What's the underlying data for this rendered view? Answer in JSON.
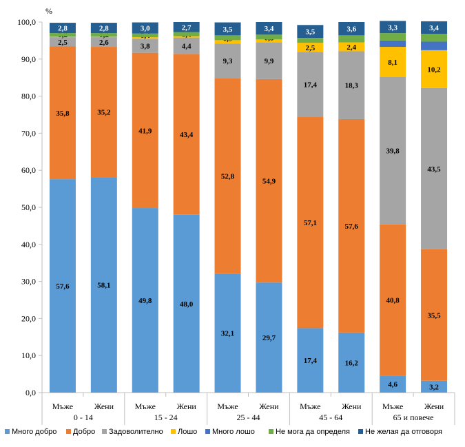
{
  "chart_data": {
    "type": "bar",
    "stacked": true,
    "y_unit_label": "%",
    "ylim": [
      0,
      100
    ],
    "yticks": [
      "0,0",
      "10,0",
      "20,0",
      "30,0",
      "40,0",
      "50,0",
      "60,0",
      "70,0",
      "80,0",
      "90,0",
      "100,0"
    ],
    "grid": false,
    "legend_position": "bottom",
    "groups": [
      "0 - 14",
      "15 - 24",
      "25 - 44",
      "45 - 64",
      "65 и повече"
    ],
    "categories": [
      "Мъже",
      "Жени",
      "Мъже",
      "Жени",
      "Мъже",
      "Жени",
      "Мъже",
      "Жени",
      "Мъже",
      "Жени"
    ],
    "series": [
      {
        "name": "Много добро",
        "color": "#5b9bd5",
        "values": [
          57.6,
          58.1,
          49.8,
          48.0,
          32.1,
          29.7,
          17.4,
          16.2,
          4.6,
          3.2
        ],
        "labels": [
          "57,6",
          "58,1",
          "49,8",
          "48,0",
          "32,1",
          "29,7",
          "17,4",
          "16,2",
          "4,6",
          "3,2"
        ]
      },
      {
        "name": "Добро",
        "color": "#ed7d31",
        "values": [
          35.8,
          35.2,
          41.9,
          43.4,
          52.8,
          54.9,
          57.1,
          57.6,
          40.8,
          35.5
        ],
        "labels": [
          "35,8",
          "35,2",
          "41,9",
          "43,4",
          "52,8",
          "54,9",
          "57,1",
          "57,6",
          "40,8",
          "35,5"
        ]
      },
      {
        "name": "Задоволително",
        "color": "#a5a5a5",
        "values": [
          2.5,
          2.6,
          3.8,
          4.4,
          9.3,
          9.9,
          17.4,
          18.3,
          39.8,
          43.5
        ],
        "labels": [
          "2,5",
          "2,6",
          "3,8",
          "4,4",
          "9,3",
          "9,9",
          "17,4",
          "18,3",
          "39,8",
          "43,5"
        ]
      },
      {
        "name": "Лошо",
        "color": "#ffc000",
        "values": [
          0.2,
          0.2,
          0.4,
          0.4,
          0.9,
          0.8,
          2.5,
          2.4,
          8.1,
          10.2
        ],
        "labels": [
          "0,2",
          "0,2",
          "0,4",
          "0,4",
          "0,9",
          "0,8",
          "2,5",
          "2,4",
          "8,1",
          "10,2"
        ]
      },
      {
        "name": "Много лошо",
        "color": "#4472c4",
        "values": [
          0.0,
          0.0,
          0.0,
          0.0,
          0.0,
          0.0,
          0.0,
          0.0,
          1.7,
          2.3
        ],
        "labels": [
          "",
          "",
          "",
          "",
          "",
          "",
          "",
          "",
          "",
          ""
        ]
      },
      {
        "name": "Не мога да определя",
        "color": "#70ad47",
        "values": [
          0.9,
          0.9,
          1.0,
          1.1,
          1.3,
          1.3,
          1.3,
          1.9,
          2.0,
          2.1
        ],
        "labels": [
          "",
          "",
          "",
          "",
          "",
          "",
          "",
          "",
          "",
          ""
        ]
      },
      {
        "name": "Не желая да отговоря",
        "color": "#255e91",
        "values": [
          2.8,
          2.8,
          3.0,
          2.7,
          3.5,
          3.4,
          3.5,
          3.6,
          3.3,
          3.4
        ],
        "labels": [
          "2,8",
          "2,8",
          "3,0",
          "2,7",
          "3,5",
          "3,4",
          "3,5",
          "3,6",
          "3,3",
          "3,4"
        ]
      }
    ]
  }
}
